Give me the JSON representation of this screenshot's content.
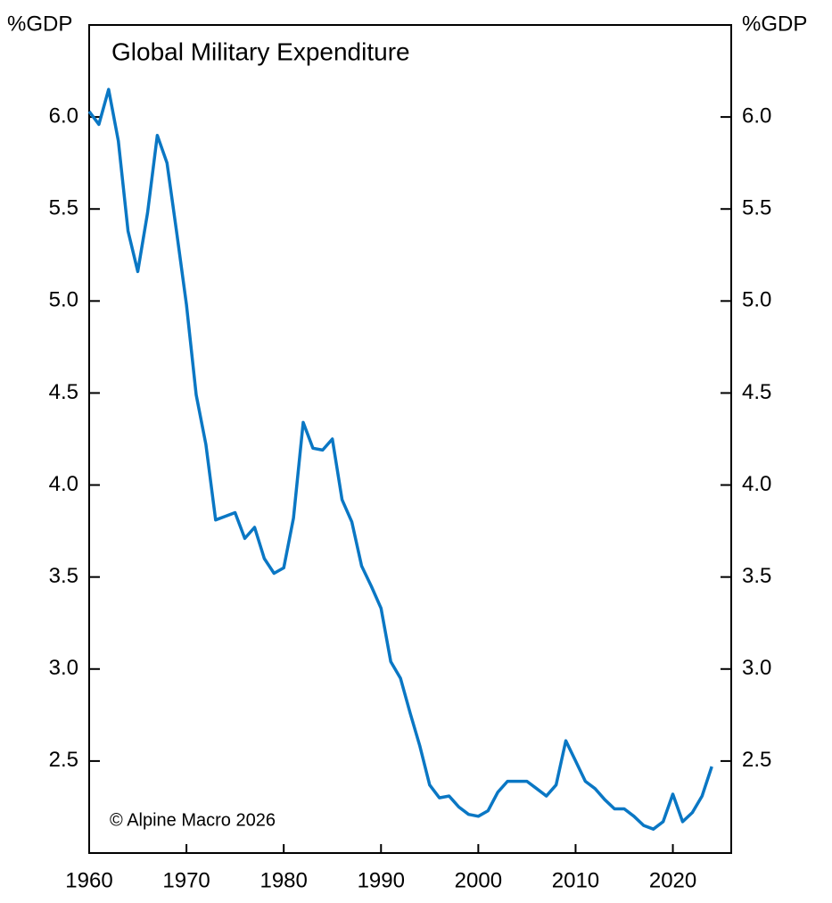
{
  "chart_data": {
    "type": "line",
    "title": "Global Military Expenditure",
    "y_label": "%GDP",
    "y2_label": "%GDP",
    "source": "© Alpine Macro 2026",
    "color": "#0a77c4",
    "x": [
      1960,
      1961,
      1962,
      1963,
      1964,
      1965,
      1966,
      1967,
      1968,
      1969,
      1970,
      1971,
      1972,
      1973,
      1974,
      1975,
      1976,
      1977,
      1978,
      1979,
      1980,
      1981,
      1982,
      1983,
      1984,
      1985,
      1986,
      1987,
      1988,
      1989,
      1990,
      1991,
      1992,
      1993,
      1994,
      1995,
      1996,
      1997,
      1998,
      1999,
      2000,
      2001,
      2002,
      2003,
      2004,
      2005,
      2006,
      2007,
      2008,
      2009,
      2010,
      2011,
      2012,
      2013,
      2014,
      2015,
      2016,
      2017,
      2018,
      2019,
      2020,
      2021,
      2022,
      2023,
      2024
    ],
    "values": [
      6.03,
      5.96,
      6.15,
      5.87,
      5.38,
      5.16,
      5.48,
      5.9,
      5.75,
      5.37,
      4.98,
      4.49,
      4.22,
      3.81,
      3.83,
      3.85,
      3.71,
      3.77,
      3.6,
      3.52,
      3.55,
      3.82,
      4.34,
      4.2,
      4.19,
      4.25,
      3.92,
      3.8,
      3.56,
      3.45,
      3.33,
      3.04,
      2.95,
      2.76,
      2.58,
      2.37,
      2.3,
      2.31,
      2.25,
      2.21,
      2.2,
      2.23,
      2.33,
      2.39,
      2.39,
      2.39,
      2.35,
      2.31,
      2.37,
      2.61,
      2.5,
      2.39,
      2.35,
      2.29,
      2.24,
      2.24,
      2.2,
      2.15,
      2.13,
      2.17,
      2.32,
      2.17,
      2.22,
      2.31,
      2.47
    ],
    "xlim": [
      1960,
      2026
    ],
    "xticks": [
      1960,
      1970,
      1980,
      1990,
      2000,
      2010,
      2020
    ],
    "ylim": [
      2.0,
      6.5
    ],
    "yticks": [
      2.5,
      {
        "value": 3,
        "label": "3.0"
      },
      3.5,
      {
        "value": 4,
        "label": "4.0"
      },
      4.5,
      {
        "value": 5,
        "label": "5.0"
      },
      5.5,
      {
        "value": 6,
        "label": "6.0"
      }
    ],
    "grid": false
  }
}
